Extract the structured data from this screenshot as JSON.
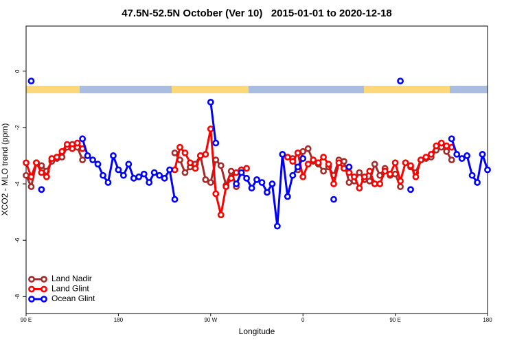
{
  "chart_data": {
    "type": "line",
    "title": "47.5N-52.5N October (Ver 10)   2015-01-01 to 2020-12-18",
    "x_label": "Longitude",
    "y_label": "XCO2 - MLO trend (ppm)",
    "xlim": [
      90,
      540
    ],
    "ylim": [
      -8.6,
      1.6
    ],
    "xticks": [
      {
        "value": 90,
        "label": "90 E"
      },
      180,
      {
        "value": 270,
        "label": "90 W"
      },
      {
        "value": 360,
        "label": "0"
      },
      {
        "value": 450,
        "label": "90 E"
      },
      {
        "value": 540,
        "label": "180"
      }
    ],
    "yticks": [
      -8,
      -6,
      -4,
      -2,
      0
    ],
    "legend": "bottom-left",
    "x": [
      90,
      95,
      100,
      105,
      110,
      115,
      120,
      125,
      130,
      135,
      140,
      145,
      150,
      155,
      160,
      165,
      170,
      175,
      180,
      185,
      190,
      195,
      200,
      205,
      210,
      215,
      220,
      225,
      230,
      235,
      240,
      245,
      250,
      255,
      260,
      265,
      270,
      275,
      280,
      285,
      290,
      295,
      300,
      305,
      310,
      315,
      320,
      325,
      330,
      335,
      340,
      345,
      350,
      355,
      360,
      365,
      370,
      375,
      380,
      385,
      390,
      395,
      400,
      405,
      410,
      415,
      420,
      425,
      430,
      435,
      440,
      445,
      450,
      455,
      460,
      465,
      470,
      475,
      480,
      485,
      490,
      495,
      500,
      505,
      510,
      515,
      520,
      525,
      530,
      535,
      540
    ],
    "series": [
      {
        "name": "Land Nadir",
        "color": "#a52a2a",
        "values": [
          -3.7,
          -4.1,
          -3.25,
          -3.35,
          -3.55,
          -3.2,
          -3.1,
          -3.05,
          -2.7,
          -2.6,
          -2.7,
          -3.15,
          null,
          null,
          null,
          null,
          null,
          null,
          null,
          null,
          null,
          null,
          null,
          null,
          null,
          null,
          null,
          null,
          null,
          -2.9,
          -3.15,
          -3.6,
          -3.4,
          -3.3,
          -3.0,
          -3.85,
          -3.95,
          -3.15,
          -3.35,
          -4.05,
          -3.55,
          -4.1,
          -3.5,
          null,
          null,
          null,
          null,
          null,
          null,
          null,
          null,
          null,
          -3.1,
          -3.5,
          -2.85,
          -2.75,
          -3.2,
          -3.3,
          -3.55,
          -3.4,
          -3.7,
          -3.15,
          -3.2,
          -3.95,
          -3.9,
          -3.6,
          -3.85,
          -3.9,
          -3.3,
          -3.7,
          -3.45,
          -3.7,
          -3.65,
          -4.1,
          null,
          -3.4,
          -3.6,
          -3.15,
          -3.1,
          -3.05,
          -2.8,
          -2.7,
          -2.85,
          -3.15,
          null,
          null,
          null,
          null,
          null,
          null,
          null
        ]
      },
      {
        "name": "Land Glint",
        "color": "#ff0000",
        "values": [
          -3.25,
          -3.75,
          -3.25,
          -3.6,
          -3.75,
          -3.1,
          -3.05,
          -2.85,
          -2.6,
          -2.75,
          -2.55,
          -2.75,
          null,
          null,
          null,
          null,
          null,
          null,
          null,
          null,
          null,
          null,
          null,
          null,
          null,
          null,
          null,
          null,
          null,
          -3.5,
          -2.7,
          -2.9,
          -3.25,
          -3.45,
          -3.0,
          -2.95,
          -2.05,
          -4.35,
          -5.1,
          -4.1,
          -3.8,
          -3.6,
          -3.5,
          -3.45,
          null,
          null,
          null,
          null,
          null,
          null,
          null,
          -3.05,
          -3.2,
          -2.9,
          -3.75,
          -3.3,
          -3.15,
          -3.25,
          -3.05,
          -3.3,
          -4.0,
          -3.25,
          -3.45,
          -3.6,
          -3.75,
          -4.15,
          -3.75,
          -3.55,
          -4.0,
          -4.0,
          -3.55,
          -3.65,
          -3.25,
          -3.9,
          -3.25,
          -3.35,
          -3.75,
          -3.15,
          -3.05,
          -2.95,
          -2.65,
          -2.55,
          -2.65,
          -2.7,
          null,
          null,
          null,
          null,
          null,
          null,
          null
        ]
      },
      {
        "name": "Ocean Glint",
        "color": "#0000ff",
        "values": [
          null,
          -0.35,
          null,
          -4.2,
          null,
          null,
          null,
          null,
          null,
          null,
          null,
          -2.4,
          -3.0,
          -3.15,
          -3.3,
          -3.7,
          -3.95,
          -3.0,
          -3.5,
          -3.7,
          -3.3,
          -3.8,
          -3.75,
          -3.65,
          -3.95,
          -3.6,
          -3.7,
          -3.8,
          -3.5,
          -4.55,
          null,
          null,
          null,
          null,
          null,
          null,
          -1.1,
          -2.55,
          null,
          null,
          null,
          -4.0,
          -3.6,
          -3.8,
          -4.15,
          -3.85,
          -3.95,
          -4.3,
          -4.0,
          -5.5,
          -2.95,
          -4.45,
          -3.7,
          -3.4,
          -3.1,
          null,
          null,
          null,
          null,
          null,
          -4.55,
          null,
          null,
          -3.4,
          null,
          null,
          null,
          null,
          null,
          null,
          null,
          null,
          null,
          -0.35,
          null,
          -4.2,
          null,
          null,
          null,
          null,
          null,
          null,
          null,
          -2.4,
          -2.95,
          -3.1,
          -3.0,
          -3.7,
          -3.95,
          -2.95,
          -3.5
        ]
      }
    ]
  }
}
